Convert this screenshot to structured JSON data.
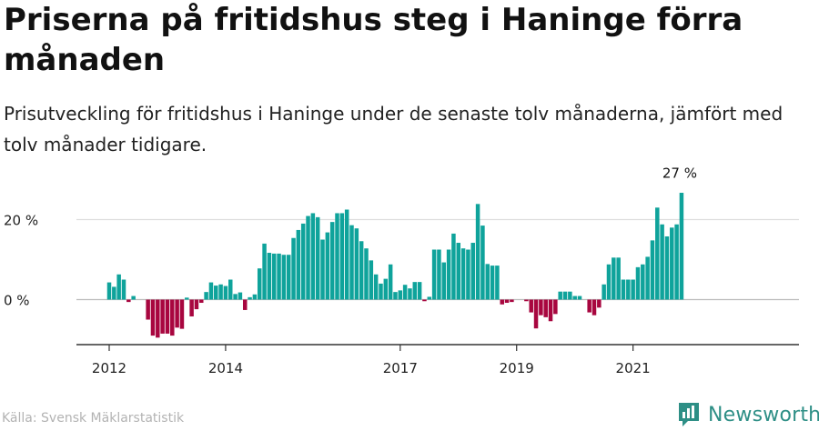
{
  "title": "Priserna på fritidshus steg i Haninge förra månaden",
  "subtitle": "Prisutveckling för fritidshus i Haninge under de senaste tolv månaderna, jämfört med tolv månader tidigare.",
  "source": "Källa: Svensk Mäklarstatistik",
  "brand": {
    "name": "Newsworthy",
    "icon": "newsworthy-logo-icon"
  },
  "colors": {
    "positive": "#0fa39b",
    "negative": "#a8063f",
    "axis": "#333333",
    "grid": "#dddddd",
    "brand": "#2e8f86"
  },
  "chart_data": {
    "type": "bar",
    "ylabel": "",
    "xlabel": "",
    "y_ticks": [
      0,
      20
    ],
    "y_tick_labels": [
      "0 %",
      "20 %"
    ],
    "ylim": [
      -11,
      27
    ],
    "x_ticks": [
      "2012",
      "2014",
      "2017",
      "2019",
      "2021"
    ],
    "grid": true,
    "annotation": {
      "label": "27 %",
      "category": "2021-11",
      "value": 27
    },
    "categories": [
      "2012-01",
      "2012-02",
      "2012-03",
      "2012-04",
      "2012-05",
      "2012-06",
      "2012-07",
      "2012-08",
      "2012-09",
      "2012-10",
      "2012-11",
      "2012-12",
      "2013-01",
      "2013-02",
      "2013-03",
      "2013-04",
      "2013-05",
      "2013-06",
      "2013-07",
      "2013-08",
      "2013-09",
      "2013-10",
      "2013-11",
      "2013-12",
      "2014-01",
      "2014-02",
      "2014-03",
      "2014-04",
      "2014-05",
      "2014-06",
      "2014-07",
      "2014-08",
      "2014-09",
      "2014-10",
      "2014-11",
      "2014-12",
      "2015-01",
      "2015-02",
      "2015-03",
      "2015-04",
      "2015-05",
      "2015-06",
      "2015-07",
      "2015-08",
      "2015-09",
      "2015-10",
      "2015-11",
      "2015-12",
      "2016-01",
      "2016-02",
      "2016-03",
      "2016-04",
      "2016-05",
      "2016-06",
      "2016-07",
      "2016-08",
      "2016-09",
      "2016-10",
      "2016-11",
      "2016-12",
      "2017-01",
      "2017-02",
      "2017-03",
      "2017-04",
      "2017-05",
      "2017-06",
      "2017-07",
      "2017-08",
      "2017-09",
      "2017-10",
      "2017-11",
      "2017-12",
      "2018-01",
      "2018-02",
      "2018-03",
      "2018-04",
      "2018-05",
      "2018-06",
      "2018-07",
      "2018-08",
      "2018-09",
      "2018-10",
      "2018-11",
      "2018-12",
      "2019-01",
      "2019-02",
      "2019-03",
      "2019-04",
      "2019-05",
      "2019-06",
      "2019-07",
      "2019-08",
      "2019-09",
      "2019-10",
      "2019-11",
      "2019-12",
      "2020-01",
      "2020-02",
      "2020-03",
      "2020-04",
      "2020-05",
      "2020-06",
      "2020-07",
      "2020-08",
      "2020-09",
      "2020-10",
      "2020-11",
      "2020-12",
      "2021-01",
      "2021-02",
      "2021-03",
      "2021-04",
      "2021-05",
      "2021-06",
      "2021-07",
      "2021-08",
      "2021-09",
      "2021-10",
      "2021-11"
    ],
    "values": [
      4.3,
      3.2,
      6.3,
      5.0,
      -0.6,
      0.9,
      0,
      0,
      -5.0,
      -9.0,
      -9.5,
      -8.5,
      -8.5,
      -9.0,
      -7.0,
      -7.3,
      0.5,
      -4.2,
      -2.4,
      -0.8,
      1.9,
      4.3,
      3.5,
      3.8,
      3.4,
      5.0,
      1.4,
      1.8,
      -2.6,
      0.6,
      1.3,
      7.8,
      14.0,
      11.7,
      11.5,
      11.5,
      11.2,
      11.2,
      15.4,
      17.4,
      19.0,
      20.9,
      21.6,
      20.6,
      15.0,
      16.8,
      19.4,
      21.6,
      21.6,
      22.5,
      18.6,
      17.8,
      14.6,
      12.8,
      9.8,
      6.3,
      4.0,
      5.2,
      8.8,
      1.9,
      2.3,
      3.7,
      2.8,
      4.4,
      4.4,
      -0.4,
      0.7,
      12.5,
      12.5,
      9.3,
      12.5,
      16.5,
      14.2,
      12.8,
      12.5,
      14.2,
      23.9,
      18.5,
      8.9,
      8.5,
      8.5,
      -1.2,
      -0.8,
      -0.6,
      0,
      0,
      -0.4,
      -3.2,
      -7.2,
      -3.9,
      -4.4,
      -5.4,
      -3.6,
      2.0,
      2.0,
      2.0,
      0.9,
      0.9,
      0,
      -3.2,
      -3.9,
      -2.0,
      3.8,
      8.8,
      10.5,
      10.5,
      5.0,
      5.0,
      5.0,
      8.1,
      8.8,
      10.7,
      14.8,
      23.0,
      18.8,
      15.8,
      18.0,
      18.8,
      26.7
    ]
  }
}
